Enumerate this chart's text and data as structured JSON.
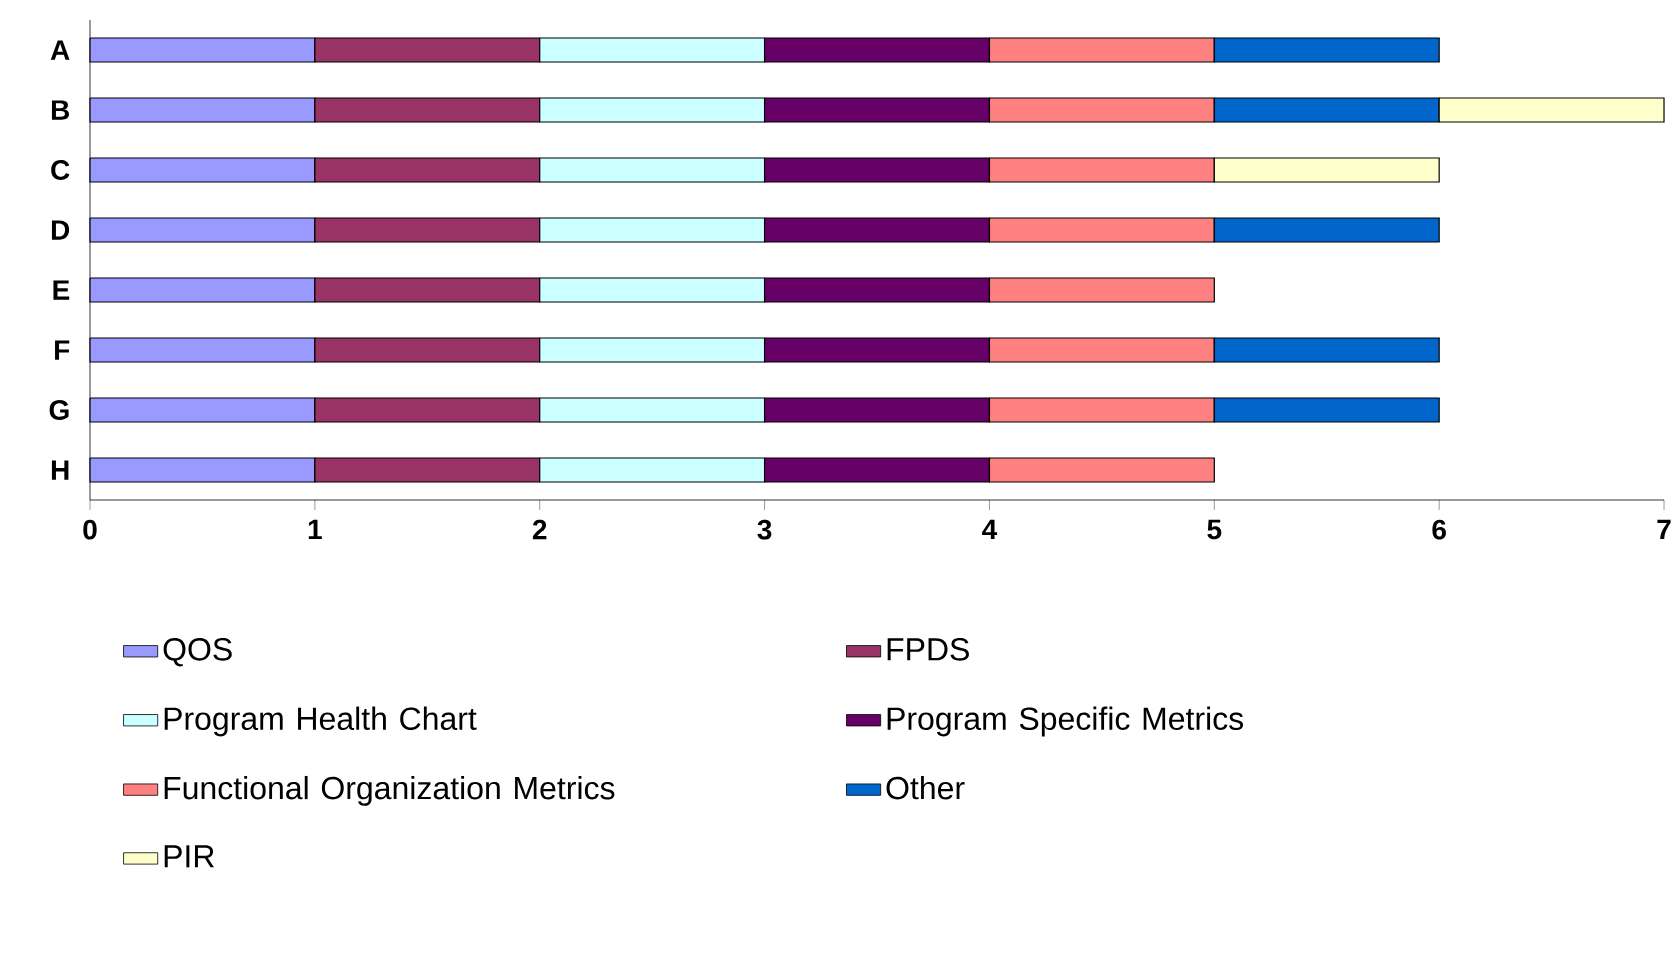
{
  "chart_data": {
    "type": "bar",
    "orientation": "horizontal",
    "stacked": true,
    "legend": "bottom",
    "categories": [
      "A",
      "B",
      "C",
      "D",
      "E",
      "F",
      "G",
      "H"
    ],
    "series": [
      {
        "name": "QOS",
        "color": "#9999ff",
        "values": [
          1,
          1,
          1,
          1,
          1,
          1,
          1,
          1
        ]
      },
      {
        "name": "FPDS",
        "color": "#993366",
        "values": [
          1,
          1,
          1,
          1,
          1,
          1,
          1,
          1
        ]
      },
      {
        "name": "Program Health Chart",
        "color": "#ccffff",
        "values": [
          1,
          1,
          1,
          1,
          1,
          1,
          1,
          1
        ]
      },
      {
        "name": "Program Specific Metrics",
        "color": "#660066",
        "values": [
          1,
          1,
          1,
          1,
          1,
          1,
          1,
          1
        ]
      },
      {
        "name": "Functional Organization Metrics",
        "color": "#ff8080",
        "values": [
          1,
          1,
          1,
          1,
          1,
          1,
          1,
          1
        ]
      },
      {
        "name": "Other",
        "color": "#0066cc",
        "values": [
          1,
          1,
          null,
          1,
          null,
          1,
          1,
          null
        ]
      },
      {
        "name": "PIR",
        "color": "#ffffcc",
        "values": [
          null,
          1,
          1,
          null,
          null,
          null,
          null,
          null
        ]
      }
    ],
    "xlim": [
      0,
      7
    ],
    "xticks": [
      0,
      1,
      2,
      3,
      4,
      5,
      6,
      7
    ]
  }
}
